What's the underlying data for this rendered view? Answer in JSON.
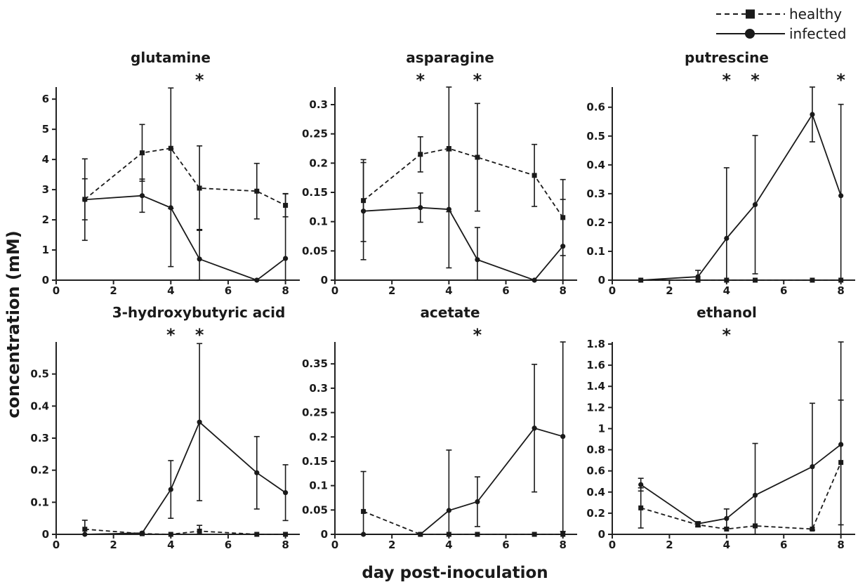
{
  "figure": {
    "ylabel": "concentration (mM)",
    "xlabel": "day post-inoculation",
    "legend": {
      "placement": "top-right",
      "entries": [
        {
          "label": "healthy",
          "style": "dashed",
          "marker": "square"
        },
        {
          "label": "infected",
          "style": "solid",
          "marker": "circle"
        }
      ]
    },
    "colors": {
      "line": "#1a1a1a",
      "axis": "#222222"
    },
    "significance_marker": "*"
  },
  "chart_data": [
    {
      "type": "line",
      "title": "glutamine",
      "xlim": [
        0,
        8.5
      ],
      "ylim": [
        0,
        6.4
      ],
      "xticks": [
        0,
        2,
        4,
        6,
        8
      ],
      "xtick_labels": [
        "0",
        "2",
        "4",
        "6",
        "8"
      ],
      "yticks": [
        0,
        1,
        2,
        3,
        4,
        5,
        6
      ],
      "ytick_labels": [
        "0",
        "1",
        "2",
        "3",
        "4",
        "5",
        "6"
      ],
      "significant_days": [
        5
      ],
      "series": [
        {
          "name": "healthy",
          "x": [
            1,
            3,
            4,
            5,
            7,
            8
          ],
          "y": [
            2.68,
            4.22,
            4.37,
            3.05,
            2.95,
            2.48
          ],
          "err": [
            0.68,
            0.94,
            2.0,
            1.4,
            0.92,
            0.38
          ]
        },
        {
          "name": "infected",
          "x": [
            1,
            3,
            4,
            5,
            7,
            8
          ],
          "y": [
            2.67,
            2.8,
            2.4,
            0.7,
            0.0,
            0.72
          ],
          "err": [
            1.35,
            0.55,
            1.95,
            0.98,
            0.0,
            2.15
          ]
        }
      ]
    },
    {
      "type": "line",
      "title": "asparagine",
      "xlim": [
        0,
        8.5
      ],
      "ylim": [
        0,
        0.33
      ],
      "xticks": [
        0,
        2,
        4,
        6,
        8
      ],
      "xtick_labels": [
        "0",
        "2",
        "4",
        "6",
        "8"
      ],
      "yticks": [
        0,
        0.05,
        0.1,
        0.15,
        0.2,
        0.25,
        0.3
      ],
      "ytick_labels": [
        "0",
        "0.05",
        "0.1",
        "0.15",
        "0.2",
        "0.25",
        "0.3"
      ],
      "significant_days": [
        3,
        5
      ],
      "series": [
        {
          "name": "healthy",
          "x": [
            1,
            3,
            4,
            5,
            7,
            8
          ],
          "y": [
            0.136,
            0.215,
            0.225,
            0.21,
            0.179,
            0.107
          ],
          "err": [
            0.07,
            0.03,
            0.108,
            0.092,
            0.053,
            0.065
          ]
        },
        {
          "name": "infected",
          "x": [
            1,
            3,
            4,
            5,
            7,
            8
          ],
          "y": [
            0.118,
            0.124,
            0.121,
            0.035,
            0.0,
            0.058
          ],
          "err": [
            0.083,
            0.025,
            0.1,
            0.055,
            0.0,
            0.08
          ]
        }
      ]
    },
    {
      "type": "line",
      "title": "putrescine",
      "xlim": [
        0,
        8.5
      ],
      "ylim": [
        0,
        0.67
      ],
      "xticks": [
        0,
        2,
        4,
        6,
        8
      ],
      "xtick_labels": [
        "0",
        "2",
        "4",
        "6",
        "8"
      ],
      "yticks": [
        0,
        0.1,
        0.2,
        0.3,
        0.4,
        0.5,
        0.6
      ],
      "ytick_labels": [
        "0",
        "0.1",
        "0.2",
        "0.3",
        "0.4",
        "0.5",
        "0.6"
      ],
      "significant_days": [
        4,
        5,
        8
      ],
      "series": [
        {
          "name": "healthy",
          "x": [
            1,
            3,
            4,
            5,
            7,
            8
          ],
          "y": [
            0.0,
            0.0,
            0.0,
            0.0,
            0.0,
            0.0
          ],
          "err": [
            0,
            0,
            0,
            0,
            0,
            0
          ]
        },
        {
          "name": "infected",
          "x": [
            1,
            3,
            4,
            5,
            7,
            8
          ],
          "y": [
            0.0,
            0.012,
            0.145,
            0.262,
            0.575,
            0.293
          ],
          "err": [
            0.0,
            0.022,
            0.245,
            0.24,
            0.095,
            0.317
          ]
        }
      ]
    },
    {
      "type": "line",
      "title": "3-hydroxybutyric acid",
      "xlim": [
        0,
        8.5
      ],
      "ylim": [
        0,
        0.6
      ],
      "xticks": [
        0,
        2,
        4,
        6,
        8
      ],
      "xtick_labels": [
        "0",
        "2",
        "4",
        "6",
        "8"
      ],
      "yticks": [
        0,
        0.1,
        0.2,
        0.3,
        0.4,
        0.5
      ],
      "ytick_labels": [
        "0",
        "0.1",
        "0.2",
        "0.3",
        "0.4",
        "0.5"
      ],
      "significant_days": [
        4,
        5
      ],
      "series": [
        {
          "name": "healthy",
          "x": [
            1,
            3,
            4,
            5,
            7,
            8
          ],
          "y": [
            0.016,
            0.002,
            0.0,
            0.01,
            0.0,
            0.0
          ],
          "err": [
            0.028,
            0.002,
            0.0,
            0.018,
            0.0,
            0.0
          ]
        },
        {
          "name": "infected",
          "x": [
            1,
            3,
            4,
            5,
            7,
            8
          ],
          "y": [
            0.0,
            0.004,
            0.14,
            0.35,
            0.192,
            0.13
          ],
          "err": [
            0.0,
            0.0,
            0.09,
            0.245,
            0.113,
            0.087
          ]
        }
      ]
    },
    {
      "type": "line",
      "title": "acetate",
      "xlim": [
        0,
        8.5
      ],
      "ylim": [
        0,
        0.395
      ],
      "xticks": [
        0,
        2,
        4,
        6,
        8
      ],
      "xtick_labels": [
        "0",
        "2",
        "4",
        "6",
        "8"
      ],
      "yticks": [
        0,
        0.05,
        0.1,
        0.15,
        0.2,
        0.25,
        0.3,
        0.35
      ],
      "ytick_labels": [
        "0",
        "0.05",
        "0.1",
        "0.15",
        "0.2",
        "0.25",
        "0.3",
        "0.35"
      ],
      "significant_days": [
        5
      ],
      "series": [
        {
          "name": "healthy",
          "x": [
            1,
            3,
            4,
            5,
            7,
            8
          ],
          "y": [
            0.047,
            0.0,
            0.0,
            0.0,
            0.0,
            0.0
          ],
          "err": [
            0.082,
            0.0,
            0.0,
            0.0,
            0.0,
            0.0
          ]
        },
        {
          "name": "infected",
          "x": [
            1,
            3,
            4,
            5,
            7,
            8
          ],
          "y": [
            0.0,
            0.0,
            0.049,
            0.067,
            0.218,
            0.201
          ],
          "err": [
            0.0,
            0.0,
            0.124,
            0.051,
            0.131,
            0.195
          ]
        }
      ]
    },
    {
      "type": "line",
      "title": "ethanol",
      "xlim": [
        0,
        8.5
      ],
      "ylim": [
        0,
        1.82
      ],
      "xticks": [
        0,
        2,
        4,
        6,
        8
      ],
      "xtick_labels": [
        "0",
        "2",
        "4",
        "6",
        "8"
      ],
      "yticks": [
        0,
        0.2,
        0.4,
        0.6,
        0.8,
        1.0,
        1.2,
        1.4,
        1.6,
        1.8
      ],
      "ytick_labels": [
        "0",
        "0.2",
        "0.4",
        "0.6",
        "0.8",
        "1",
        "1.2",
        "1.4",
        "1.6",
        "1.8"
      ],
      "significant_days": [
        4
      ],
      "series": [
        {
          "name": "healthy",
          "x": [
            1,
            3,
            4,
            5,
            7,
            8
          ],
          "y": [
            0.25,
            0.09,
            0.05,
            0.08,
            0.05,
            0.68
          ],
          "err": [
            0.19,
            0.02,
            0.0,
            0.0,
            0.0,
            0.59
          ]
        },
        {
          "name": "infected",
          "x": [
            1,
            3,
            4,
            5,
            7,
            8
          ],
          "y": [
            0.47,
            0.1,
            0.15,
            0.37,
            0.64,
            0.85
          ],
          "err": [
            0.06,
            0.02,
            0.09,
            0.49,
            0.6,
            0.97
          ]
        }
      ]
    }
  ]
}
